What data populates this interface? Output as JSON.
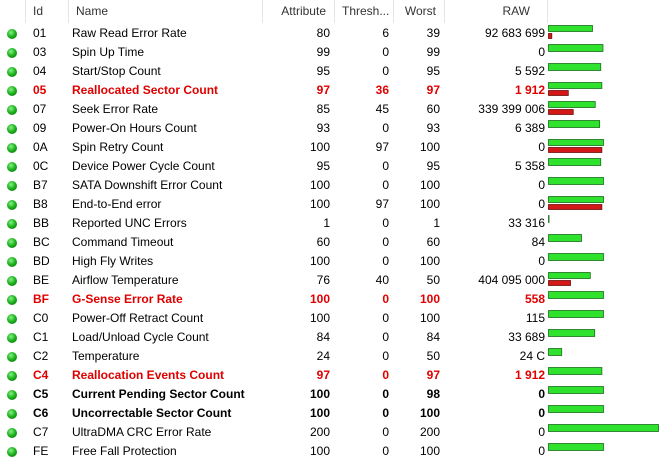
{
  "table": {
    "columns": [
      "Id",
      "Name",
      "Attribute",
      "Thresh...",
      "Worst",
      "RAW"
    ],
    "emphasis_color": "#e00000",
    "bar_colors": {
      "attribute": "#2ee22e",
      "threshold": "#d41818"
    },
    "rows": [
      {
        "id": "01",
        "name": "Raw Read Error Rate",
        "attribute": 80,
        "threshold": 6,
        "worst": 39,
        "raw": "92 683 699"
      },
      {
        "id": "03",
        "name": "Spin Up Time",
        "attribute": 99,
        "threshold": 0,
        "worst": 99,
        "raw": "0"
      },
      {
        "id": "04",
        "name": "Start/Stop Count",
        "attribute": 95,
        "threshold": 0,
        "worst": 95,
        "raw": "5 592"
      },
      {
        "id": "05",
        "name": "Reallocated Sector Count",
        "attribute": 97,
        "threshold": 36,
        "worst": 97,
        "raw": "1 912",
        "bold": true,
        "emphasis": true
      },
      {
        "id": "07",
        "name": "Seek Error Rate",
        "attribute": 85,
        "threshold": 45,
        "worst": 60,
        "raw": "339 399 006"
      },
      {
        "id": "09",
        "name": "Power-On Hours Count",
        "attribute": 93,
        "threshold": 0,
        "worst": 93,
        "raw": "6 389"
      },
      {
        "id": "0A",
        "name": "Spin Retry Count",
        "attribute": 100,
        "threshold": 97,
        "worst": 100,
        "raw": "0"
      },
      {
        "id": "0C",
        "name": "Device Power Cycle Count",
        "attribute": 95,
        "threshold": 0,
        "worst": 95,
        "raw": "5 358"
      },
      {
        "id": "B7",
        "name": "SATA Downshift Error Count",
        "attribute": 100,
        "threshold": 0,
        "worst": 100,
        "raw": "0"
      },
      {
        "id": "B8",
        "name": "End-to-End error",
        "attribute": 100,
        "threshold": 97,
        "worst": 100,
        "raw": "0"
      },
      {
        "id": "BB",
        "name": "Reported UNC Errors",
        "attribute": 1,
        "threshold": 0,
        "worst": 1,
        "raw": "33 316"
      },
      {
        "id": "BC",
        "name": "Command Timeout",
        "attribute": 60,
        "threshold": 0,
        "worst": 60,
        "raw": "84"
      },
      {
        "id": "BD",
        "name": "High Fly Writes",
        "attribute": 100,
        "threshold": 0,
        "worst": 100,
        "raw": "0"
      },
      {
        "id": "BE",
        "name": "Airflow Temperature",
        "attribute": 76,
        "threshold": 40,
        "worst": 50,
        "raw": "404 095 000"
      },
      {
        "id": "BF",
        "name": "G-Sense Error Rate",
        "attribute": 100,
        "threshold": 0,
        "worst": 100,
        "raw": "558",
        "bold": true,
        "emphasis": true
      },
      {
        "id": "C0",
        "name": "Power-Off Retract Count",
        "attribute": 100,
        "threshold": 0,
        "worst": 100,
        "raw": "115"
      },
      {
        "id": "C1",
        "name": "Load/Unload Cycle Count",
        "attribute": 84,
        "threshold": 0,
        "worst": 84,
        "raw": "33 689"
      },
      {
        "id": "C2",
        "name": "Temperature",
        "attribute": 24,
        "threshold": 0,
        "worst": 50,
        "raw": "24 C"
      },
      {
        "id": "C4",
        "name": "Reallocation Events Count",
        "attribute": 97,
        "threshold": 0,
        "worst": 97,
        "raw": "1 912",
        "bold": true,
        "emphasis": true
      },
      {
        "id": "C5",
        "name": "Current Pending Sector Count",
        "attribute": 100,
        "threshold": 0,
        "worst": 98,
        "raw": "0",
        "bold": true
      },
      {
        "id": "C6",
        "name": "Uncorrectable Sector Count",
        "attribute": 100,
        "threshold": 0,
        "worst": 100,
        "raw": "0",
        "bold": true
      },
      {
        "id": "C7",
        "name": "UltraDMA CRC Error Rate",
        "attribute": 200,
        "threshold": 0,
        "worst": 200,
        "raw": "0"
      },
      {
        "id": "FE",
        "name": "Free Fall Protection",
        "attribute": 100,
        "threshold": 0,
        "worst": 100,
        "raw": "0"
      }
    ]
  }
}
